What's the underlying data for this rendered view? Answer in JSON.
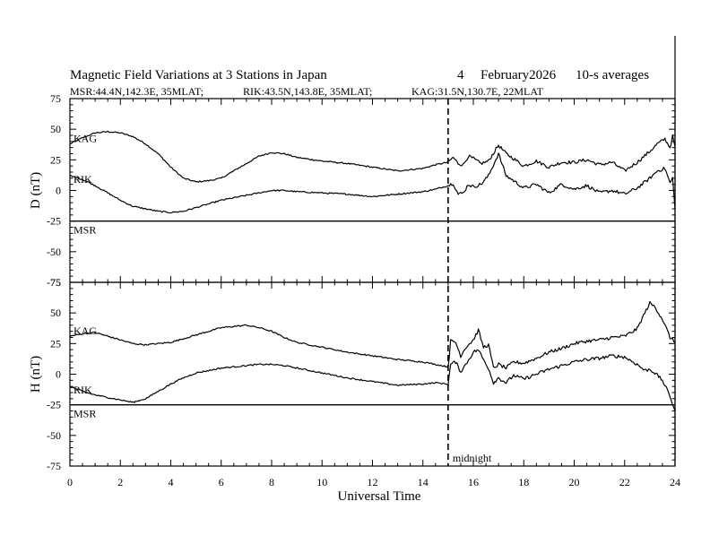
{
  "chart_data": {
    "type": "line",
    "title": {
      "main": "Magnetic Field Variations at 3 Stations in Japan",
      "day": "4",
      "date": "February2026",
      "averaging": "10-s averages"
    },
    "subtitle": {
      "msr": "MSR:44.4N,142.3E, 35MLAT;",
      "rik": "RIK:43.5N,143.8E, 35MLAT;",
      "kag": "KAG:31.5N,130.7E, 22MLAT"
    },
    "xlabel": "Universal Time",
    "xlim": [
      0,
      24
    ],
    "xtick_labels": [
      "0",
      "2",
      "4",
      "6",
      "8",
      "10",
      "12",
      "14",
      "16",
      "18",
      "20",
      "22",
      "24"
    ],
    "annotation": {
      "label": "midnight",
      "x": 15
    },
    "panels": [
      {
        "component": "D",
        "ylabel": "D (nT)",
        "ylim": [
          -75,
          75
        ],
        "ytick_labels": [
          "75",
          "50",
          "25",
          "0",
          "-25",
          "-50",
          "-75"
        ],
        "series": [
          {
            "name": "KAG",
            "x": [
              0,
              0.5,
              1,
              1.5,
              2,
              2.5,
              3,
              3.5,
              4,
              4.5,
              5,
              5.5,
              6,
              6.5,
              7,
              7.5,
              8,
              8.5,
              9,
              10,
              11,
              12,
              13,
              14,
              14.5,
              15,
              15.2,
              15.4,
              15.6,
              15.8,
              16,
              16.3,
              16.6,
              17,
              17.3,
              17.6,
              18,
              18.5,
              19,
              19.5,
              20,
              20.5,
              21,
              21.5,
              22,
              22.5,
              23,
              23.3,
              23.6,
              23.8,
              23.9,
              24
            ],
            "y": [
              38,
              43,
              47,
              48,
              47,
              44,
              38,
              30,
              19,
              10,
              7,
              8,
              10,
              16,
              22,
              28,
              31,
              30,
              27,
              24,
              22,
              19,
              16,
              18,
              21,
              23,
              27,
              22,
              21,
              28,
              26,
              22,
              24,
              37,
              30,
              26,
              20,
              24,
              19,
              23,
              23,
              25,
              21,
              23,
              16,
              23,
              32,
              38,
              42,
              35,
              44,
              36
            ]
          },
          {
            "name": "RIK",
            "x": [
              0,
              0.5,
              1,
              1.5,
              2,
              2.5,
              3,
              3.5,
              4,
              4.5,
              5,
              5.5,
              6,
              6.5,
              7,
              7.5,
              8,
              8.5,
              9,
              10,
              11,
              12,
              13,
              14,
              14.5,
              15,
              15.2,
              15.4,
              15.6,
              15.8,
              16,
              16.3,
              16.6,
              17,
              17.3,
              17.6,
              18,
              18.5,
              19,
              19.5,
              20,
              20.5,
              21,
              21.5,
              22,
              22.5,
              23,
              23.3,
              23.6,
              23.8,
              23.9,
              24
            ],
            "y": [
              12,
              9,
              4,
              -2,
              -8,
              -13,
              -15,
              -17,
              -18,
              -17,
              -14,
              -11,
              -8,
              -6,
              -4,
              -2,
              0,
              0,
              -1,
              -2,
              -3,
              -5,
              -3,
              -1,
              1,
              4,
              6,
              -3,
              -2,
              5,
              3,
              5,
              12,
              30,
              12,
              8,
              2,
              5,
              -2,
              5,
              1,
              4,
              -2,
              0,
              -3,
              2,
              10,
              16,
              18,
              6,
              10,
              -15
            ]
          },
          {
            "name": "MSR",
            "x": [
              0,
              24
            ],
            "y": [
              -25,
              -25
            ]
          }
        ]
      },
      {
        "component": "H",
        "ylabel": "H (nT)",
        "ylim": [
          -75,
          75
        ],
        "ytick_labels": [
          "75",
          "50",
          "25",
          "0",
          "-25",
          "-50",
          "-75"
        ],
        "series": [
          {
            "name": "KAG",
            "x": [
              0,
              0.5,
              1,
              1.5,
              2,
              2.5,
              3,
              3.5,
              4,
              4.5,
              5,
              5.5,
              6,
              6.5,
              7,
              7.5,
              8,
              8.5,
              9,
              10,
              11,
              12,
              13,
              14,
              14.5,
              15,
              15.1,
              15.3,
              15.5,
              15.7,
              16,
              16.2,
              16.4,
              16.6,
              16.8,
              17,
              17.3,
              17.6,
              18,
              18.5,
              19,
              19.5,
              20,
              20.5,
              21,
              21.5,
              22,
              22.5,
              22.8,
              23,
              23.2,
              23.5,
              23.8,
              24
            ],
            "y": [
              31,
              33,
              34,
              31,
              28,
              25,
              24,
              25,
              26,
              29,
              32,
              35,
              38,
              39,
              40,
              38,
              35,
              30,
              26,
              22,
              18,
              15,
              12,
              10,
              8,
              6,
              27,
              26,
              15,
              22,
              28,
              36,
              22,
              24,
              5,
              8,
              5,
              10,
              9,
              13,
              18,
              21,
              25,
              27,
              28,
              30,
              31,
              37,
              50,
              58,
              55,
              45,
              30,
              26
            ]
          },
          {
            "name": "RIK",
            "x": [
              0,
              0.5,
              1,
              1.5,
              2,
              2.5,
              3,
              3.5,
              4,
              4.5,
              5,
              5.5,
              6,
              6.5,
              7,
              7.5,
              8,
              8.5,
              9,
              10,
              11,
              12,
              13,
              14,
              14.5,
              15,
              15.1,
              15.3,
              15.5,
              15.7,
              16,
              16.2,
              16.4,
              16.6,
              16.8,
              17,
              17.3,
              17.6,
              18,
              18.5,
              19,
              19.5,
              20,
              20.5,
              21,
              21.5,
              22,
              22.5,
              22.8,
              23,
              23.2,
              23.5,
              23.8,
              24
            ],
            "y": [
              -10,
              -14,
              -17,
              -19,
              -21,
              -23,
              -20,
              -14,
              -8,
              -3,
              1,
              3,
              5,
              6,
              7,
              8,
              8,
              7,
              5,
              1,
              -3,
              -6,
              -9,
              -8,
              -7,
              -8,
              8,
              10,
              2,
              8,
              18,
              20,
              12,
              5,
              -7,
              -3,
              -7,
              -1,
              -4,
              0,
              4,
              7,
              10,
              12,
              13,
              15,
              14,
              8,
              3,
              4,
              1,
              -5,
              -18,
              -30
            ]
          },
          {
            "name": "MSR",
            "x": [
              0,
              24
            ],
            "y": [
              -25,
              -25
            ]
          }
        ]
      }
    ]
  }
}
